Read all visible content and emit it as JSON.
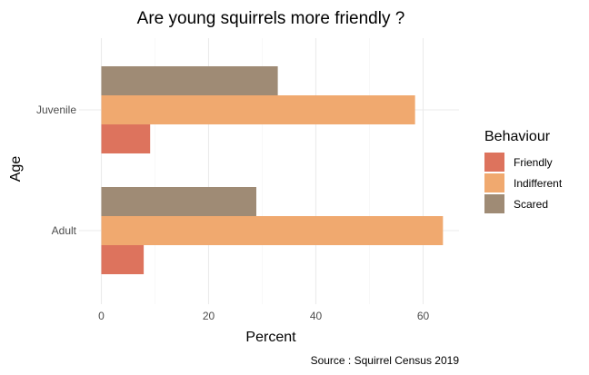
{
  "chart_data": {
    "type": "bar",
    "orientation": "horizontal",
    "title": "Are young squirrels more friendly ?",
    "xlabel": "Percent",
    "ylabel": "Age",
    "xlim": [
      0,
      65
    ],
    "x_ticks": [
      0,
      20,
      40,
      60
    ],
    "categories": [
      "Juvenile",
      "Adult"
    ],
    "legend_title": "Behaviour",
    "legend_position": "right",
    "grid": true,
    "series": [
      {
        "name": "Friendly",
        "color": "#dd735d",
        "values": [
          9.1,
          7.9
        ]
      },
      {
        "name": "Indifferent",
        "color": "#f0a96f",
        "values": [
          58.5,
          63.7
        ]
      },
      {
        "name": "Scared",
        "color": "#9f8b75",
        "values": [
          32.9,
          28.9
        ]
      }
    ],
    "caption": "Source : Squirrel Census 2019"
  }
}
